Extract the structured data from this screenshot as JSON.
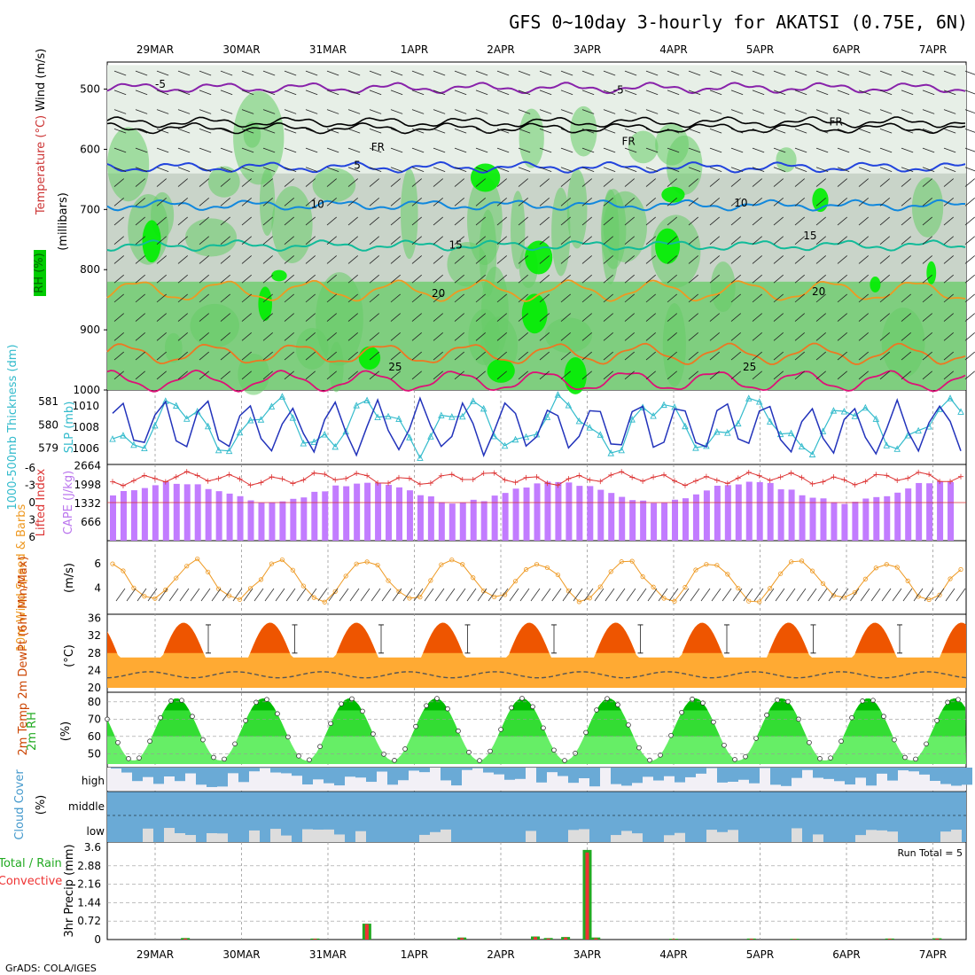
{
  "header": {
    "title": "GFS 0~10day 3-hourly for AKATSI (0.75E, 6N)",
    "footer": "GrADS: COLA/IGES",
    "run_total": "Run Total = 5"
  },
  "dates": [
    "29MAR",
    "30MAR",
    "31MAR",
    "1APR",
    "2APR",
    "3APR",
    "4APR",
    "5APR",
    "6APR",
    "7APR"
  ],
  "colors": {
    "rh_green": "#66cc66",
    "rh_bright": "#00ee00",
    "cape_bar": "#c27cff",
    "lifted": "#dd3333",
    "slp": "#2233bb",
    "thickness": "#33bbcc",
    "wind10m": "#ee9922",
    "temp_dark": "#ee5500",
    "temp_mid": "#ffaa33",
    "temp_low": "#ffee88",
    "rh2m_dark": "#00bb00",
    "rh2m_mid": "#33dd33",
    "rh2m_light": "#66ee66",
    "cloud": "#6aaad6",
    "cloud_grey": "#dddddd",
    "precip_total": "#22aa22",
    "precip_conv": "#ee3333"
  },
  "chart_data": [
    {
      "id": "upper",
      "type": "heatmap",
      "ylabel_left": "RH (%)",
      "ylabel_mid_temp": "Temperature (°C)",
      "ylabel_mid_wind": "Wind (m/s)",
      "ylabel_right": "(millibars)",
      "y_ticks": [
        500,
        600,
        700,
        800,
        900,
        1000
      ],
      "ylim": [
        1000,
        455
      ],
      "contour_labels": [
        {
          "text": "-5",
          "day": 0.0,
          "p": 490,
          "color": "#8822aa"
        },
        {
          "text": "-5",
          "day": 5.3,
          "p": 500,
          "color": "#8822aa"
        },
        {
          "text": "FR",
          "day": 2.5,
          "p": 595,
          "color": "#000000"
        },
        {
          "text": "FR",
          "day": 5.4,
          "p": 585,
          "color": "#000000"
        },
        {
          "text": "FR",
          "day": 7.8,
          "p": 553,
          "color": "#000000"
        },
        {
          "text": "5",
          "day": 2.3,
          "p": 625,
          "color": "#2244dd"
        },
        {
          "text": "10",
          "day": 1.8,
          "p": 690,
          "color": "#1188dd"
        },
        {
          "text": "10",
          "day": 6.7,
          "p": 688,
          "color": "#1188dd"
        },
        {
          "text": "15",
          "day": 3.4,
          "p": 758,
          "color": "#11bb99"
        },
        {
          "text": "15",
          "day": 7.5,
          "p": 742,
          "color": "#11bb99"
        },
        {
          "text": "20",
          "day": 3.2,
          "p": 838,
          "color": "#ee9922"
        },
        {
          "text": "20",
          "day": 7.6,
          "p": 835,
          "color": "#ee9922"
        },
        {
          "text": "25",
          "day": 2.7,
          "p": 960,
          "color": "#ee7722"
        },
        {
          "text": "25",
          "day": 6.8,
          "p": 960,
          "color": "#ee7722"
        }
      ]
    },
    {
      "id": "slp",
      "type": "line",
      "ylabel_left": "1000-500mb Thickness (dm)",
      "ylabel_right": "SLP (mb)",
      "slp_ticks": [
        1010,
        1008,
        1006
      ],
      "thick_ticks": [
        581,
        580,
        579
      ]
    },
    {
      "id": "cape",
      "type": "bar",
      "ylabel_left": "Lifted Index",
      "ylabel_right": "CAPE (J/kg)",
      "li_ticks": [
        "-6",
        "-3",
        "0",
        "3",
        "6"
      ],
      "cape_ticks": [
        2664,
        1998,
        1332,
        666
      ]
    },
    {
      "id": "wind10m",
      "type": "line",
      "ylabel_left": "10m Wind Speed & Barbs",
      "ylabel_right": "(m/s)",
      "y_ticks": [
        6,
        4
      ]
    },
    {
      "id": "temp2m",
      "type": "area",
      "ylabel_left": "2m Temp 2m DewPt (6hr Min/Max)",
      "ylabel_right": "(°C)",
      "y_ticks": [
        36,
        32,
        28,
        24,
        20
      ]
    },
    {
      "id": "rh2m",
      "type": "area",
      "ylabel_left": "2m RH",
      "ylabel_right": "(%)",
      "y_ticks": [
        80,
        70,
        60,
        50
      ]
    },
    {
      "id": "cloud",
      "type": "area",
      "ylabel_left": "Cloud Cover",
      "ylabel_right": "(%)",
      "level_labels": [
        "high",
        "middle",
        "low"
      ]
    },
    {
      "id": "precip",
      "type": "bar",
      "ylabel_left_total": "Total / Rain",
      "ylabel_left_conv": "Convective",
      "ylabel_right": "3hr Precip (mm)",
      "y_ticks": [
        "3.6",
        "2.88",
        "2.16",
        "1.44",
        "0.72",
        "0"
      ],
      "ylim": [
        0,
        3.6
      ],
      "events": [
        {
          "day": 0.35,
          "total": 0.06,
          "conv": 0.04
        },
        {
          "day": 1.85,
          "total": 0.04,
          "conv": 0.03
        },
        {
          "day": 2.45,
          "total": 0.62,
          "conv": 0.6
        },
        {
          "day": 3.55,
          "total": 0.08,
          "conv": 0.06
        },
        {
          "day": 4.4,
          "total": 0.12,
          "conv": 0.1
        },
        {
          "day": 4.55,
          "total": 0.06,
          "conv": 0.04
        },
        {
          "day": 4.75,
          "total": 0.1,
          "conv": 0.08
        },
        {
          "day": 5.0,
          "total": 3.5,
          "conv": 3.4
        },
        {
          "day": 5.1,
          "total": 0.08,
          "conv": 0.05
        },
        {
          "day": 6.0,
          "total": 0.03,
          "conv": 0.02
        },
        {
          "day": 6.9,
          "total": 0.04,
          "conv": 0.03
        },
        {
          "day": 7.4,
          "total": 0.03,
          "conv": 0.02
        },
        {
          "day": 8.5,
          "total": 0.04,
          "conv": 0.03
        },
        {
          "day": 9.05,
          "total": 0.05,
          "conv": 0.04
        },
        {
          "day": 9.7,
          "total": 0.12,
          "conv": 0.1
        }
      ]
    }
  ]
}
